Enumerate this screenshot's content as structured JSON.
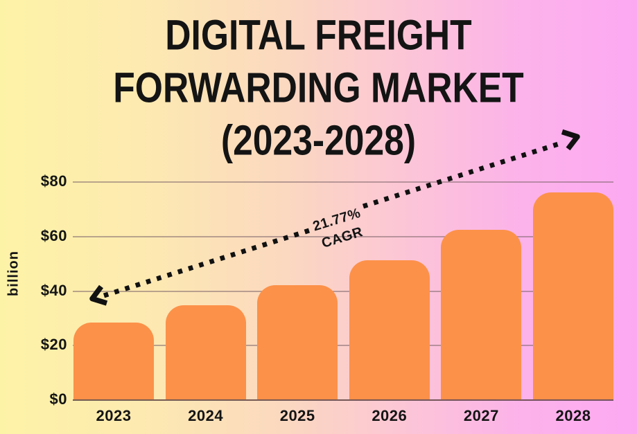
{
  "title": {
    "lines": [
      "DIGITAL FREIGHT",
      "FORWARDING MARKET",
      "(2023-2028)"
    ]
  },
  "annotation": {
    "rate": "21.77%",
    "label": "CAGR"
  },
  "chart_data": {
    "type": "bar",
    "title": "Digital Freight Forwarding Market (2023-2028)",
    "categories": [
      "2023",
      "2024",
      "2025",
      "2026",
      "2027",
      "2028"
    ],
    "values": [
      28.3,
      34.5,
      42.0,
      51.1,
      62.3,
      75.9
    ],
    "xlabel": "",
    "ylabel": "billion",
    "ylim": [
      0,
      80
    ],
    "yticks": [
      0,
      20,
      40,
      60,
      80
    ],
    "ytick_labels": [
      "$0",
      "$20",
      "$40",
      "$60",
      "$80"
    ],
    "grid": true,
    "legend": "none",
    "annotation": {
      "text": "21.77% CAGR",
      "style": "dotted double-headed arrow rising from 2023 level to 2028 level"
    }
  },
  "colors": {
    "background_left": "#fdf3a7",
    "background_right": "#fca9f2",
    "bar": "#fc9149",
    "gridline": "#80686e",
    "baseline": "#5c4242",
    "text": "#141414",
    "arrow": "#111111"
  }
}
